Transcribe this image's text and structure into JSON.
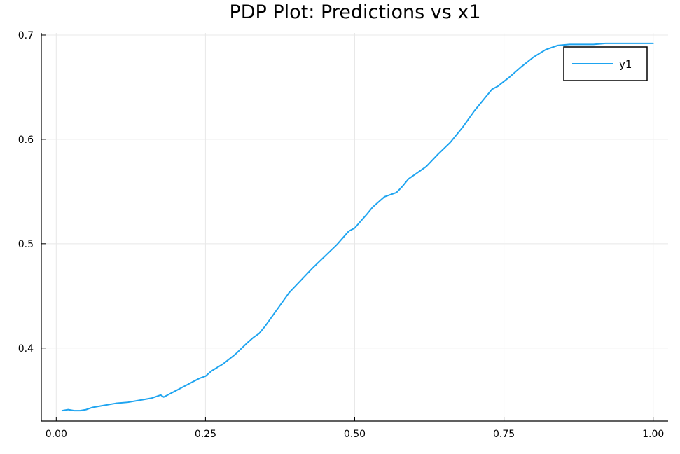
{
  "chart_data": {
    "type": "line",
    "title": "PDP Plot: Predictions vs x1",
    "xlabel": "",
    "ylabel": "",
    "xlim": [
      -0.025,
      1.025
    ],
    "ylim": [
      0.33,
      0.702
    ],
    "x_ticks": [
      0.0,
      0.25,
      0.5,
      0.75,
      1.0
    ],
    "x_tick_labels": [
      "0.00",
      "0.25",
      "0.50",
      "0.75",
      "1.00"
    ],
    "y_ticks": [
      0.4,
      0.5,
      0.6,
      0.7
    ],
    "y_tick_labels": [
      "0.4",
      "0.5",
      "0.6",
      "0.7"
    ],
    "grid": true,
    "legend_position": "top-right",
    "series": [
      {
        "name": "y1",
        "color": "#1ea4f0",
        "x": [
          0.01,
          0.02,
          0.03,
          0.04,
          0.05,
          0.06,
          0.08,
          0.1,
          0.12,
          0.14,
          0.16,
          0.175,
          0.18,
          0.19,
          0.2,
          0.22,
          0.24,
          0.25,
          0.26,
          0.28,
          0.3,
          0.32,
          0.33,
          0.34,
          0.35,
          0.37,
          0.39,
          0.41,
          0.43,
          0.45,
          0.47,
          0.49,
          0.5,
          0.52,
          0.53,
          0.54,
          0.55,
          0.57,
          0.58,
          0.59,
          0.6,
          0.62,
          0.64,
          0.66,
          0.68,
          0.7,
          0.72,
          0.73,
          0.74,
          0.76,
          0.78,
          0.8,
          0.82,
          0.84,
          0.86,
          0.88,
          0.9,
          0.92,
          0.94,
          0.96,
          0.98,
          1.0
        ],
        "values": [
          0.34,
          0.341,
          0.34,
          0.34,
          0.341,
          0.343,
          0.345,
          0.347,
          0.348,
          0.35,
          0.352,
          0.355,
          0.353,
          0.356,
          0.359,
          0.365,
          0.371,
          0.373,
          0.378,
          0.385,
          0.394,
          0.405,
          0.41,
          0.414,
          0.421,
          0.437,
          0.453,
          0.465,
          0.477,
          0.488,
          0.499,
          0.512,
          0.515,
          0.528,
          0.535,
          0.54,
          0.545,
          0.549,
          0.555,
          0.562,
          0.566,
          0.574,
          0.586,
          0.597,
          0.611,
          0.627,
          0.641,
          0.648,
          0.651,
          0.66,
          0.67,
          0.679,
          0.686,
          0.69,
          0.691,
          0.691,
          0.691,
          0.692,
          0.692,
          0.692,
          0.692,
          0.692
        ]
      }
    ]
  }
}
